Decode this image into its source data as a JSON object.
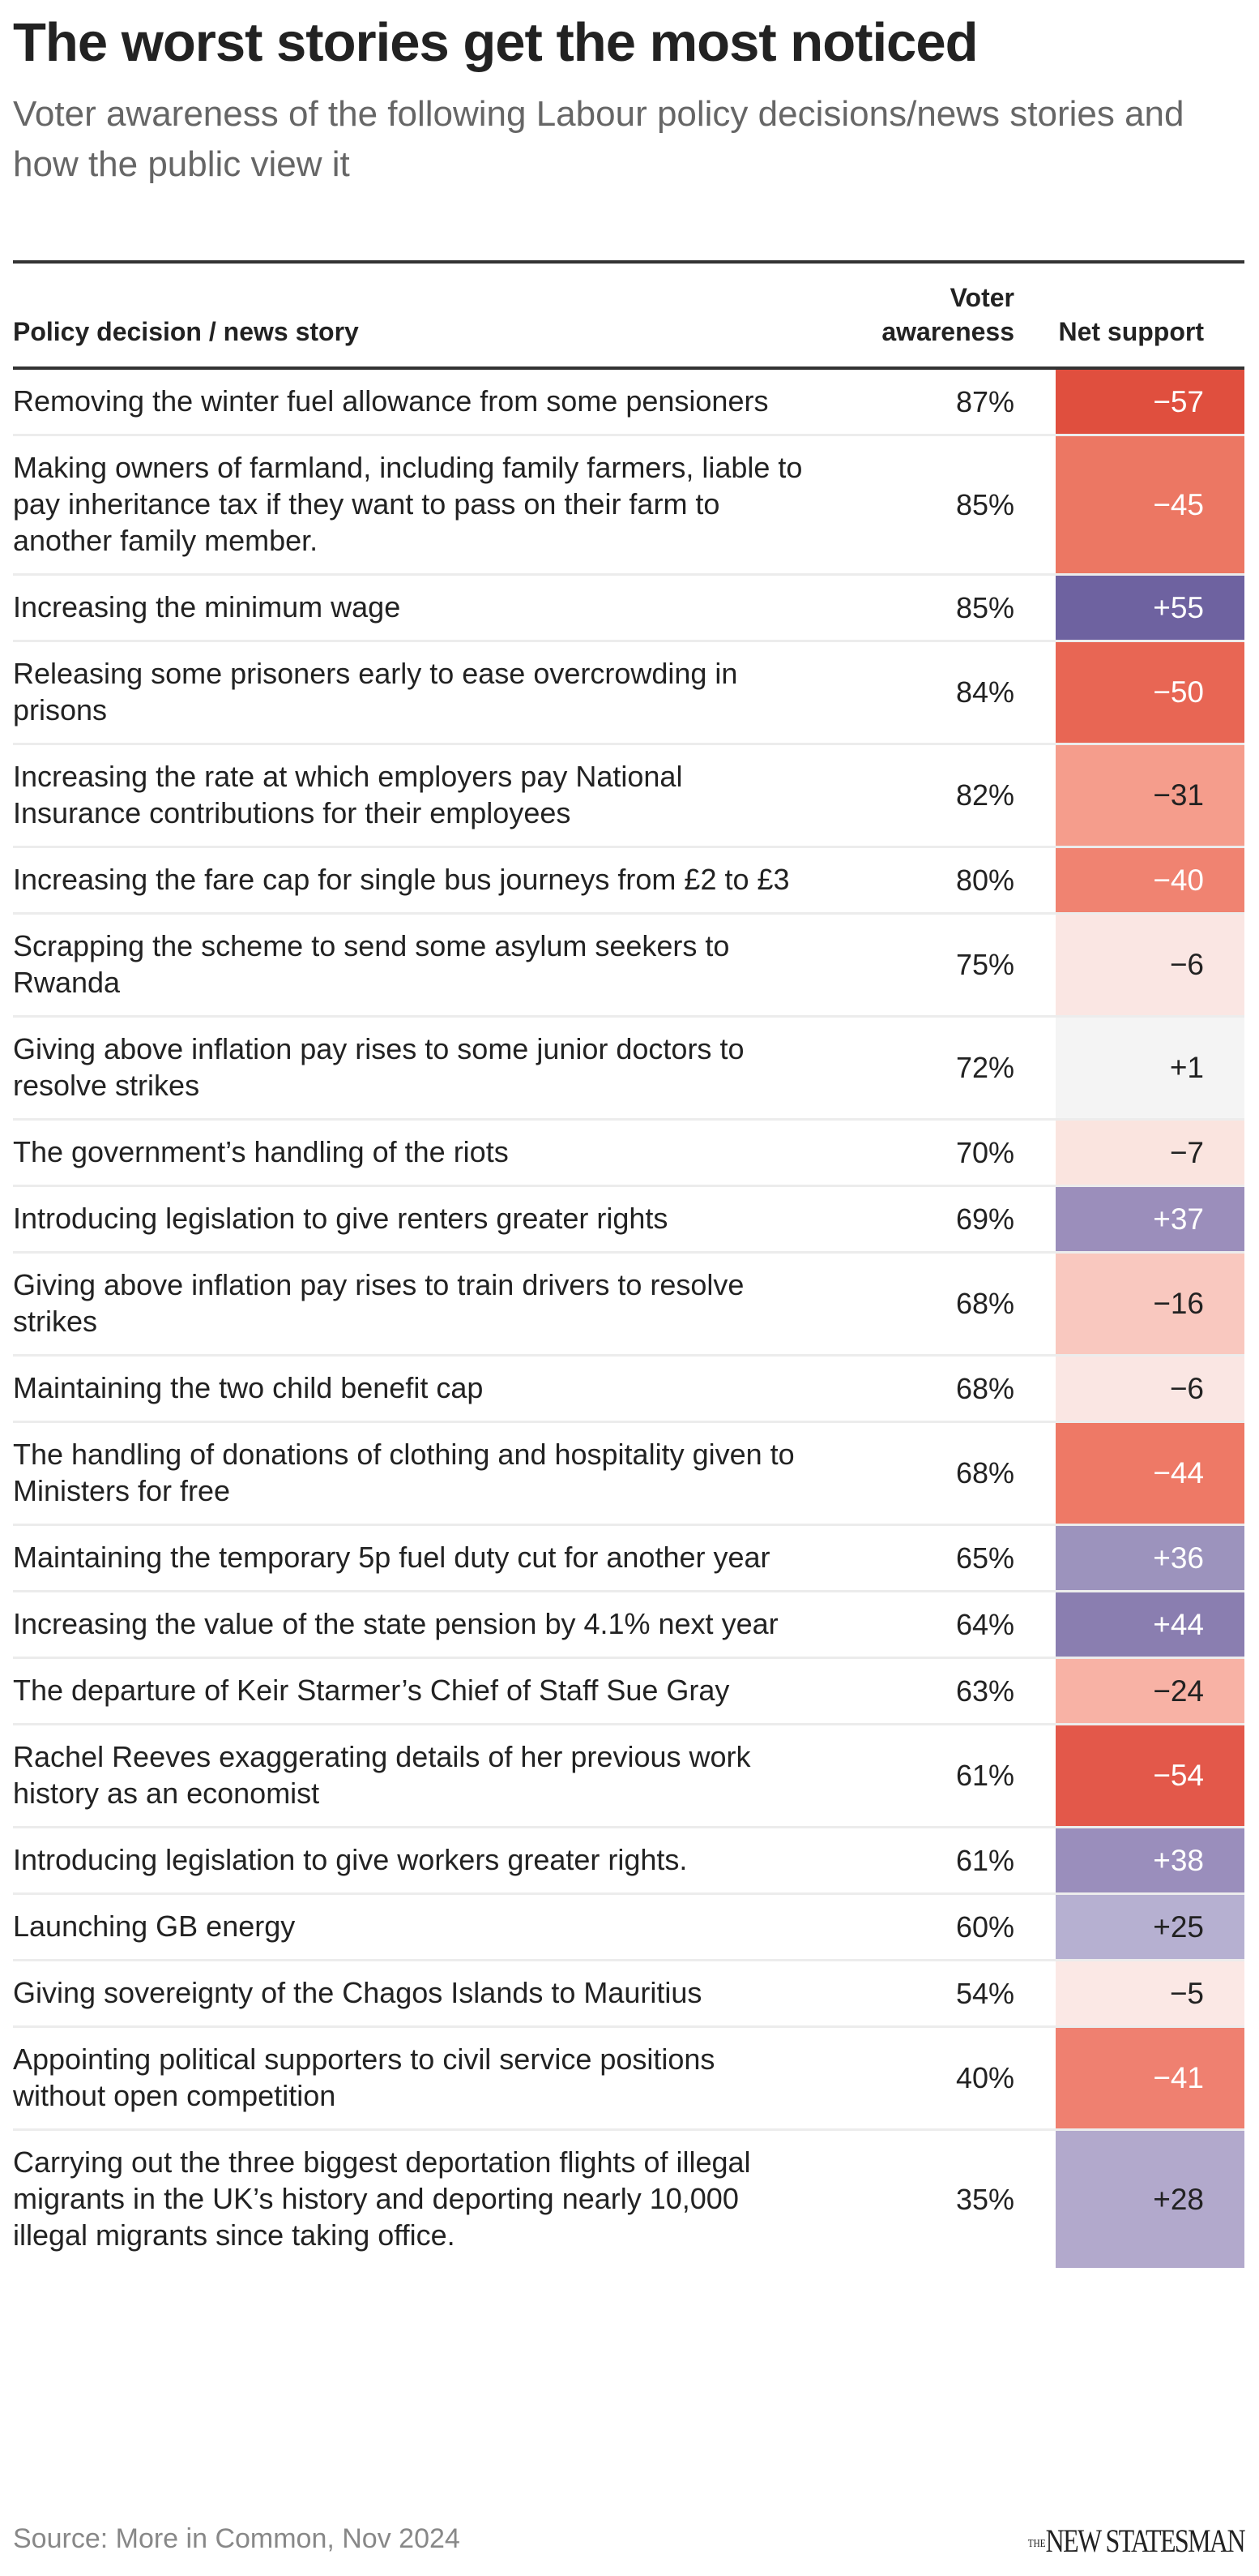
{
  "title": "The worst stories get the most noticed",
  "subtitle": "Voter awareness of the following Labour policy decisions/news stories and how the public view it",
  "source": "Source: More in Common, Nov 2024",
  "logo": {
    "small": "THE",
    "main": "NEW STATESMAN"
  },
  "chart_data": {
    "type": "table",
    "title": "The worst stories get the most noticed",
    "columns": [
      "Policy decision / news story",
      "Voter awareness",
      "Net support"
    ],
    "color_scale": {
      "negative": "#e04f3e",
      "neutral": "#f4f4f4",
      "positive": "#6e62a0"
    },
    "rows": [
      {
        "story": "Removing the winter fuel allowance from some pensioners",
        "awareness": "87%",
        "net": "−57",
        "net_value": -57,
        "color": "#e04f3e",
        "text_color": "#ffffff"
      },
      {
        "story": "Making owners of farmland, including family farmers, liable to pay inheritance tax if they want to pass on their farm to another family member.",
        "awareness": "85%",
        "net": "−45",
        "net_value": -45,
        "color": "#ec7763",
        "text_color": "#ffffff"
      },
      {
        "story": "Increasing the minimum wage",
        "awareness": "85%",
        "net": "+55",
        "net_value": 55,
        "color": "#6e62a0",
        "text_color": "#ffffff"
      },
      {
        "story": "Releasing some prisoners early to ease overcrowding in prisons",
        "awareness": "84%",
        "net": "−50",
        "net_value": -50,
        "color": "#e86654",
        "text_color": "#ffffff"
      },
      {
        "story": "Increasing the rate at which employers pay National Insurance contributions for their employees",
        "awareness": "82%",
        "net": "−31",
        "net_value": -31,
        "color": "#f59d8c",
        "text_color": "#222222"
      },
      {
        "story": "Increasing the fare cap for single bus journeys from £2 to £3",
        "awareness": "80%",
        "net": "−40",
        "net_value": -40,
        "color": "#f08371",
        "text_color": "#ffffff"
      },
      {
        "story": "Scrapping the scheme to send some asylum seekers to Rwanda",
        "awareness": "75%",
        "net": "−6",
        "net_value": -6,
        "color": "#fae6e3",
        "text_color": "#222222"
      },
      {
        "story": "Giving above inflation pay rises to some junior doctors to resolve strikes",
        "awareness": "72%",
        "net": "+1",
        "net_value": 1,
        "color": "#f4f4f4",
        "text_color": "#222222"
      },
      {
        "story": "The government’s handling of the riots",
        "awareness": "70%",
        "net": "−7",
        "net_value": -7,
        "color": "#fae4df",
        "text_color": "#222222"
      },
      {
        "story": "Introducing legislation to give renters greater rights",
        "awareness": "69%",
        "net": "+37",
        "net_value": 37,
        "color": "#9b8ebb",
        "text_color": "#ffffff"
      },
      {
        "story": "Giving above inflation pay rises to train drivers to resolve strikes",
        "awareness": "68%",
        "net": "−16",
        "net_value": -16,
        "color": "#f9c8bf",
        "text_color": "#222222"
      },
      {
        "story": "Maintaining the two child benefit cap",
        "awareness": "68%",
        "net": "−6",
        "net_value": -6,
        "color": "#fae6e3",
        "text_color": "#222222"
      },
      {
        "story": "The handling of donations of clothing and hospitality given to Ministers for free",
        "awareness": "68%",
        "net": "−44",
        "net_value": -44,
        "color": "#ee7966",
        "text_color": "#ffffff"
      },
      {
        "story": "Maintaining the temporary 5p fuel duty cut for another year",
        "awareness": "65%",
        "net": "+36",
        "net_value": 36,
        "color": "#9c93bd",
        "text_color": "#ffffff"
      },
      {
        "story": "Increasing the value of the state pension by 4.1% next year",
        "awareness": "64%",
        "net": "+44",
        "net_value": 44,
        "color": "#8a7eb0",
        "text_color": "#ffffff"
      },
      {
        "story": "The departure of Keir Starmer’s Chief of Staff Sue Gray",
        "awareness": "63%",
        "net": "−24",
        "net_value": -24,
        "color": "#f8b2a5",
        "text_color": "#222222"
      },
      {
        "story": "Rachel Reeves exaggerating details of her previous work history as an economist",
        "awareness": "61%",
        "net": "−54",
        "net_value": -54,
        "color": "#e3584a",
        "text_color": "#ffffff"
      },
      {
        "story": "Introducing legislation to give workers greater rights.",
        "awareness": "61%",
        "net": "+38",
        "net_value": 38,
        "color": "#9a8ebc",
        "text_color": "#ffffff"
      },
      {
        "story": "Launching GB energy",
        "awareness": "60%",
        "net": "+25",
        "net_value": 25,
        "color": "#b6b0d1",
        "text_color": "#222222"
      },
      {
        "story": "Giving sovereignty of the Chagos Islands to Mauritius",
        "awareness": "54%",
        "net": "−5",
        "net_value": -5,
        "color": "#fbe8e5",
        "text_color": "#222222"
      },
      {
        "story": "Appointing political supporters to civil service positions without open competition",
        "awareness": "40%",
        "net": "−41",
        "net_value": -41,
        "color": "#ef8070",
        "text_color": "#ffffff"
      },
      {
        "story": "Carrying out the three biggest deportation flights of illegal migrants in the UK’s history and deporting nearly 10,000 illegal migrants since taking office.",
        "awareness": "35%",
        "net": "+28",
        "net_value": 28,
        "color": "#b2a9cc",
        "text_color": "#222222"
      }
    ]
  }
}
